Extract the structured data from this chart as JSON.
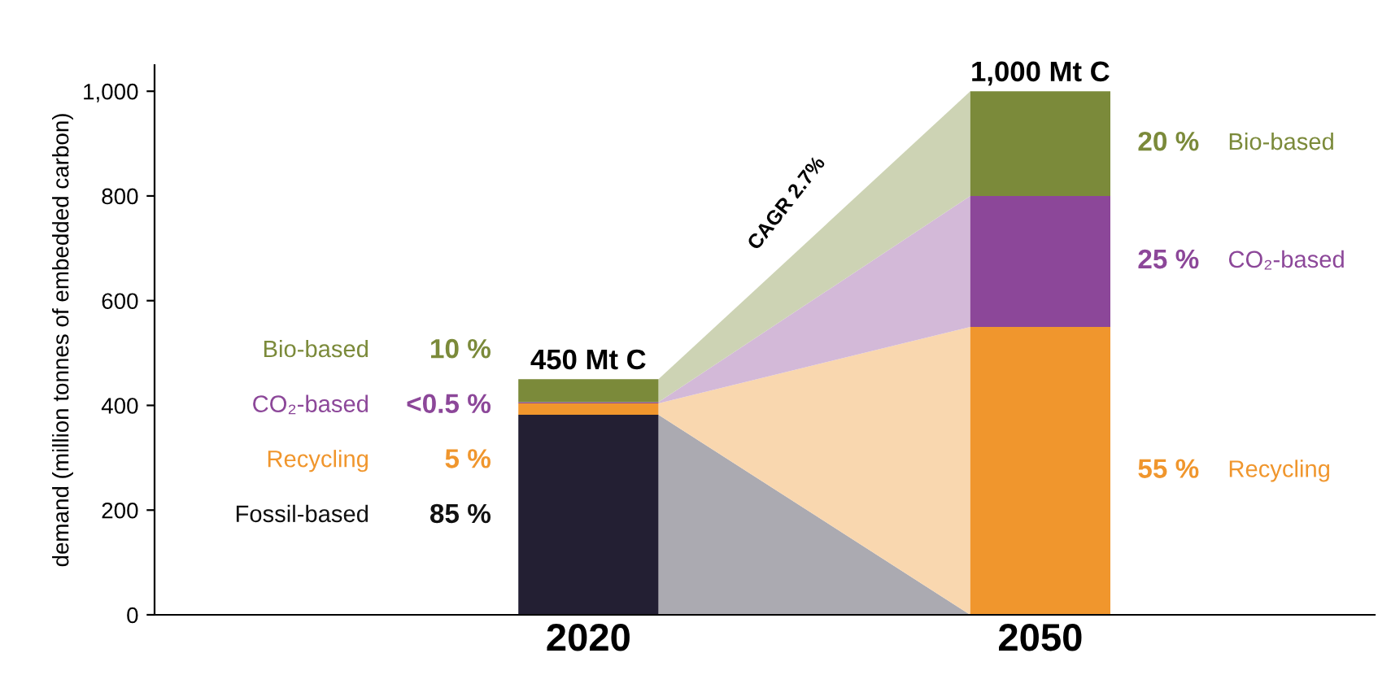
{
  "chart_data": {
    "type": "bar",
    "stacked": true,
    "ylabel": "demand (million tonnes of embedded carbon)",
    "categories": [
      "2020",
      "2050"
    ],
    "series": [
      {
        "name": "Fossil-based",
        "color": "#231f33",
        "values": [
          382,
          0
        ]
      },
      {
        "name": "Recycling",
        "color": "#f0962d",
        "values": [
          22,
          550
        ]
      },
      {
        "name": "CO₂-based",
        "color": "#8c4799",
        "values": [
          2,
          250
        ]
      },
      {
        "name": "Bio-based",
        "color": "#7b8a3a",
        "values": [
          44,
          200
        ]
      }
    ],
    "totals": [
      "450 Mt C",
      "1,000 Mt C"
    ],
    "annotations": [
      "CAGR 2.7%",
      "85 %",
      "5 %",
      "<0.5 %",
      "10 %",
      "55 %",
      "25 %",
      "20 %"
    ],
    "ylim": [
      0,
      1050
    ],
    "yticks": [
      0,
      200,
      400,
      600,
      800,
      {
        "value": 1000,
        "label": "1,000"
      }
    ],
    "grid": false,
    "legend": false
  }
}
